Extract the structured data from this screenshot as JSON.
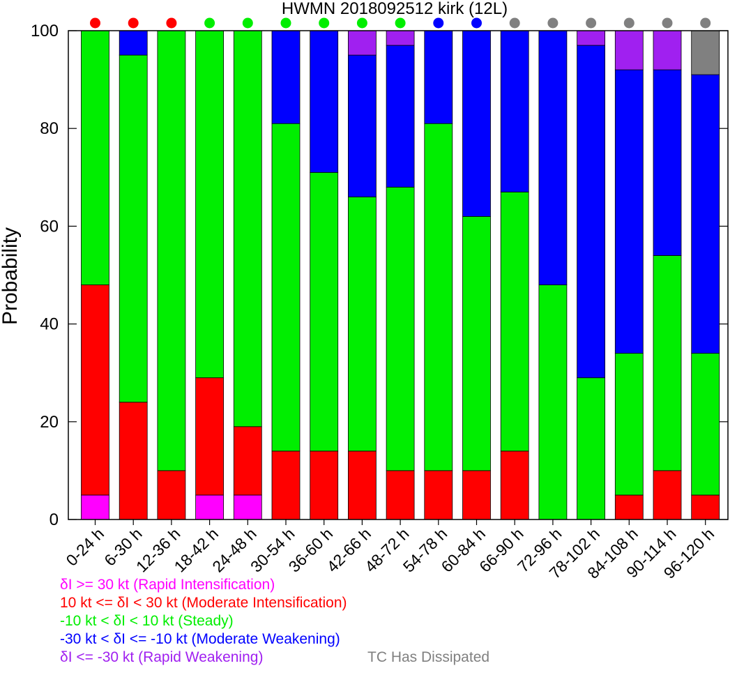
{
  "chart_data": {
    "type": "bar",
    "stacked": true,
    "title": "HWMN 2018092512 kirk (12L)",
    "xlabel": "",
    "ylabel": "Probability",
    "ylim": [
      0,
      100
    ],
    "yticks": [
      0,
      20,
      40,
      60,
      80,
      100
    ],
    "categories": [
      "0-24 h",
      "6-30 h",
      "12-36 h",
      "18-42 h",
      "24-48 h",
      "30-54 h",
      "36-60 h",
      "42-66 h",
      "48-72 h",
      "54-78 h",
      "60-84 h",
      "66-90 h",
      "72-96 h",
      "78-102 h",
      "84-108 h",
      "90-114 h",
      "96-120 h"
    ],
    "series": [
      {
        "name": "δI >= 30 kt (Rapid Intensification)",
        "color": "#ff00ff",
        "values": [
          5,
          0,
          0,
          5,
          5,
          0,
          0,
          0,
          0,
          0,
          0,
          0,
          0,
          0,
          0,
          0,
          0
        ]
      },
      {
        "name": "10 kt <= δI < 30 kt (Moderate Intensification)",
        "color": "#ff0000",
        "values": [
          43,
          24,
          10,
          24,
          14,
          14,
          14,
          14,
          10,
          10,
          10,
          14,
          0,
          0,
          5,
          10,
          5
        ]
      },
      {
        "name": "-10 kt < δI < 10 kt (Steady)",
        "color": "#00ee00",
        "values": [
          52,
          71,
          90,
          71,
          81,
          67,
          57,
          52,
          58,
          71,
          52,
          53,
          48,
          29,
          29,
          44,
          29
        ]
      },
      {
        "name": "-30 kt < δI <= -10 kt (Moderate Weakening)",
        "color": "#0000ff",
        "values": [
          0,
          5,
          0,
          0,
          0,
          19,
          29,
          29,
          29,
          19,
          38,
          33,
          52,
          68,
          58,
          38,
          57
        ]
      },
      {
        "name": "δI <= -30 kt (Rapid Weakening)",
        "color": "#a020f0",
        "values": [
          0,
          0,
          0,
          0,
          0,
          0,
          0,
          5,
          3,
          0,
          0,
          0,
          0,
          3,
          8,
          8,
          0
        ]
      },
      {
        "name": "TC Has Dissipated",
        "color": "#808080",
        "values": [
          0,
          0,
          0,
          0,
          0,
          0,
          0,
          0,
          0,
          0,
          0,
          0,
          0,
          0,
          0,
          0,
          9
        ]
      }
    ],
    "dot_colors": [
      "#ff0000",
      "#ff0000",
      "#ff0000",
      "#00ee00",
      "#00ee00",
      "#00ee00",
      "#00ee00",
      "#00ee00",
      "#00ee00",
      "#0000ff",
      "#0000ff",
      "#808080",
      "#808080",
      "#808080",
      "#808080",
      "#808080",
      "#808080"
    ]
  }
}
